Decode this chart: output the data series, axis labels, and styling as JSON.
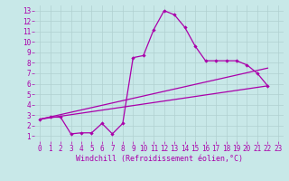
{
  "bg_color": "#c8e8e8",
  "line_color": "#aa00aa",
  "grid_color": "#b0d0d0",
  "xlabel": "Windchill (Refroidissement éolien,°C)",
  "xlim": [
    -0.5,
    23.5
  ],
  "ylim": [
    0.5,
    13.5
  ],
  "xticks": [
    0,
    1,
    2,
    3,
    4,
    5,
    6,
    7,
    8,
    9,
    10,
    11,
    12,
    13,
    14,
    15,
    16,
    17,
    18,
    19,
    20,
    21,
    22,
    23
  ],
  "yticks": [
    1,
    2,
    3,
    4,
    5,
    6,
    7,
    8,
    9,
    10,
    11,
    12,
    13
  ],
  "line1_x": [
    0,
    1,
    2,
    3,
    4,
    5,
    6,
    7,
    8,
    9,
    10,
    11,
    12,
    13,
    14,
    15,
    16,
    17,
    18,
    19,
    20,
    21,
    22
  ],
  "line1_y": [
    2.6,
    2.8,
    2.8,
    1.2,
    1.3,
    1.3,
    2.2,
    1.2,
    2.2,
    8.5,
    8.7,
    11.2,
    13.0,
    12.6,
    11.4,
    9.6,
    8.2,
    8.2,
    8.2,
    8.2,
    7.8,
    7.0,
    5.8
  ],
  "line2_x": [
    0,
    22
  ],
  "line2_y": [
    2.6,
    5.8
  ],
  "line3_x": [
    0,
    22
  ],
  "line3_y": [
    2.6,
    7.5
  ],
  "marker": "D",
  "markersize": 2.2,
  "linewidth": 0.9,
  "tick_fontsize": 5.5,
  "label_fontsize": 6.0
}
